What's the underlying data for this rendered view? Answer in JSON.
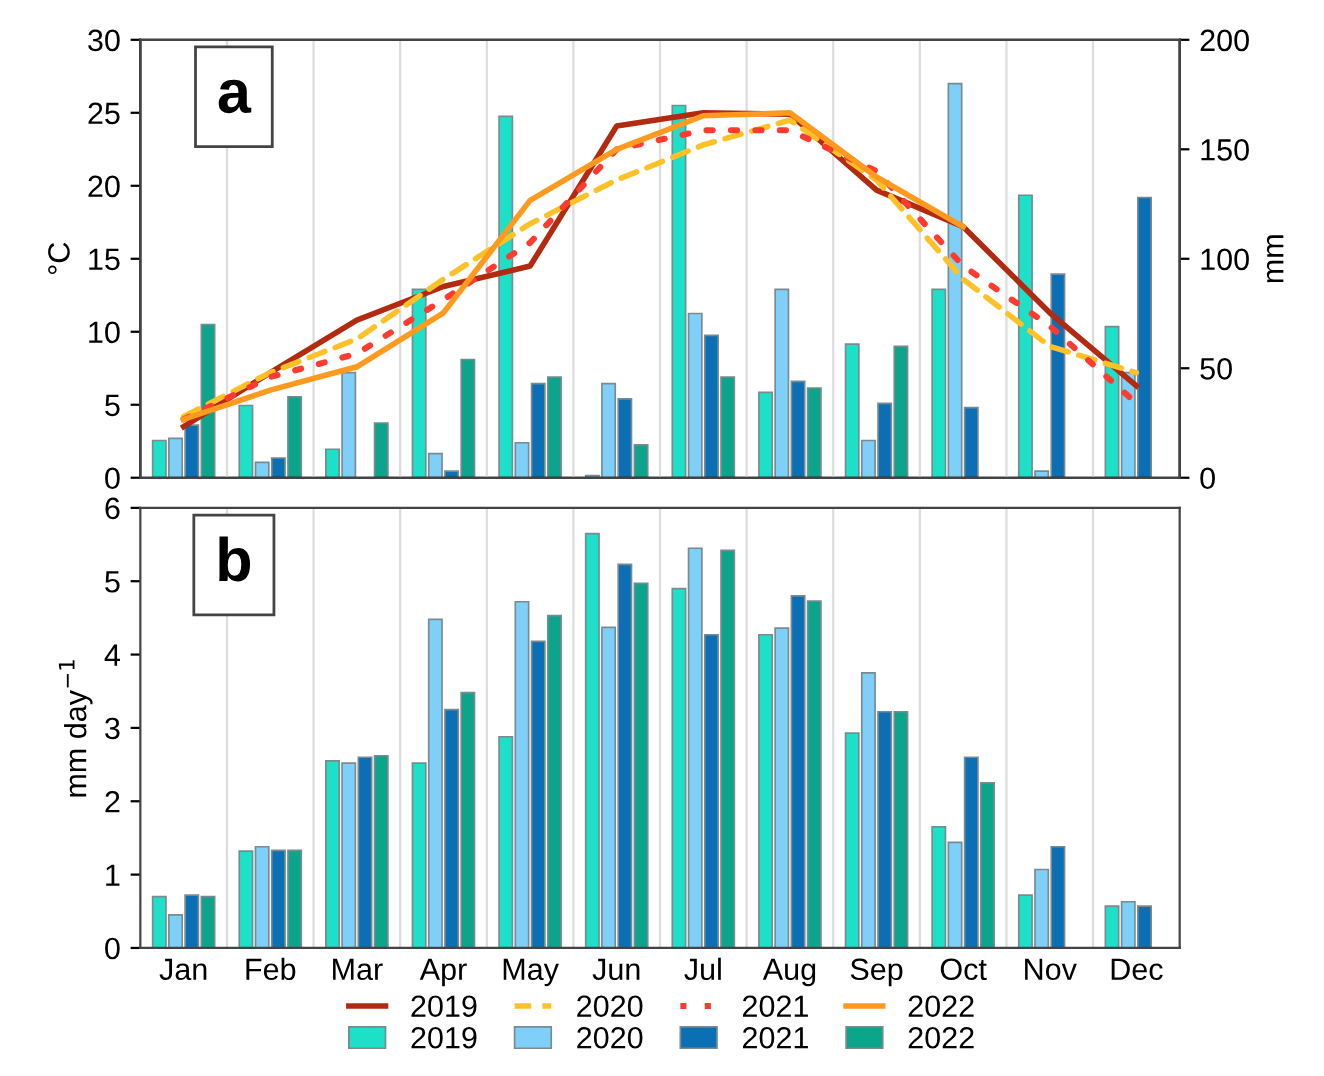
{
  "chart_data": [
    {
      "type": "bar",
      "categories": [
        null,
        null,
        null,
        null,
        null,
        null,
        null,
        null,
        null,
        null,
        null,
        null
      ],
      "ylabel": "°C",
      "y2label": "mm",
      "ylim": [
        0,
        30
      ],
      "yticks": [
        0,
        5,
        10,
        15,
        20,
        25,
        30
      ],
      "y2lim": [
        0,
        200
      ],
      "y2ticks": [
        0,
        50,
        100,
        150,
        200
      ],
      "tick_labels": "y",
      "grid": "x",
      "legend": "bottom",
      "annotations": [
        "a"
      ],
      "series": [
        {
          "name": "2019",
          "type": "bar",
          "axis": "y2",
          "color": "#1de0c8",
          "values": [
            17,
            33,
            13,
            86,
            165,
            1,
            170,
            39,
            61,
            86,
            129,
            69
          ]
        },
        {
          "name": "2020",
          "type": "bar",
          "axis": "y2",
          "color": "#7fd0f8",
          "values": [
            18,
            7,
            48,
            11,
            16,
            43,
            75,
            86,
            17,
            180,
            3,
            48
          ]
        },
        {
          "name": "2021",
          "type": "bar",
          "axis": "y2",
          "color": "#0a6fb5",
          "values": [
            24,
            9,
            null,
            3,
            43,
            36,
            65,
            44,
            34,
            32,
            93,
            128
          ]
        },
        {
          "name": "2022",
          "type": "bar",
          "axis": "y2",
          "color": "#0aa58a",
          "values": [
            70,
            37,
            25,
            54,
            46,
            15,
            46,
            41,
            60,
            null,
            null,
            null
          ]
        },
        {
          "name": "2019",
          "type": "line",
          "axis": "y",
          "line_style": "solid",
          "color": "#b22a10",
          "values": [
            3.5,
            7.2,
            10.8,
            13.1,
            14.5,
            24.1,
            25,
            24.9,
            19.7,
            17.2,
            11.3,
            6.3
          ]
        },
        {
          "name": "2020",
          "type": "line",
          "axis": "y",
          "line_style": "dashed",
          "color": "#ffc125",
          "values": [
            4.2,
            7.2,
            9.5,
            13.6,
            17.4,
            20.4,
            22.8,
            24.5,
            20.4,
            13.6,
            9,
            7.2
          ]
        },
        {
          "name": "2021",
          "type": "line",
          "axis": "y",
          "line_style": "dotted",
          "color": "#ff3b30",
          "values": [
            4,
            6.9,
            8.5,
            12.2,
            16.1,
            22.5,
            23.8,
            23.8,
            21,
            14.5,
            10.4,
            5.1
          ]
        },
        {
          "name": "2022",
          "type": "line",
          "axis": "y",
          "line_style": "solid",
          "color": "#ff9a1f",
          "values": [
            4,
            6,
            7.6,
            11.3,
            19,
            22.5,
            24.8,
            25,
            20.6,
            17.2,
            null,
            null
          ]
        }
      ]
    },
    {
      "type": "bar",
      "categories": [
        "Jan",
        "Feb",
        "Mar",
        "Apr",
        "May",
        "Jun",
        "Jul",
        "Aug",
        "Sep",
        "Oct",
        "Nov",
        "Dec"
      ],
      "ylabel": "mm day$^{−1}$",
      "ylim": [
        0,
        6
      ],
      "yticks": [
        0,
        1,
        2,
        3,
        4,
        5,
        6
      ],
      "grid": "x",
      "annotations": [
        "b"
      ],
      "series": [
        {
          "color": "#1de0c8",
          "values": [
            0.7,
            1.32,
            2.55,
            2.52,
            2.88,
            5.65,
            4.9,
            4.27,
            2.93,
            1.65,
            0.72,
            0.57
          ]
        },
        {
          "color": "#7fd0f8",
          "values": [
            0.45,
            1.38,
            2.52,
            4.48,
            4.72,
            4.37,
            5.45,
            4.36,
            3.75,
            1.44,
            1.07,
            0.63
          ]
        },
        {
          "color": "#0a6fb5",
          "values": [
            0.72,
            1.33,
            2.6,
            3.25,
            4.18,
            5.23,
            4.27,
            4.8,
            3.22,
            2.6,
            1.38,
            0.57
          ]
        },
        {
          "color": "#0aa58a",
          "values": [
            0.7,
            1.33,
            2.62,
            3.48,
            4.53,
            4.97,
            5.42,
            4.73,
            3.22,
            2.25,
            null,
            null
          ]
        }
      ]
    }
  ]
}
